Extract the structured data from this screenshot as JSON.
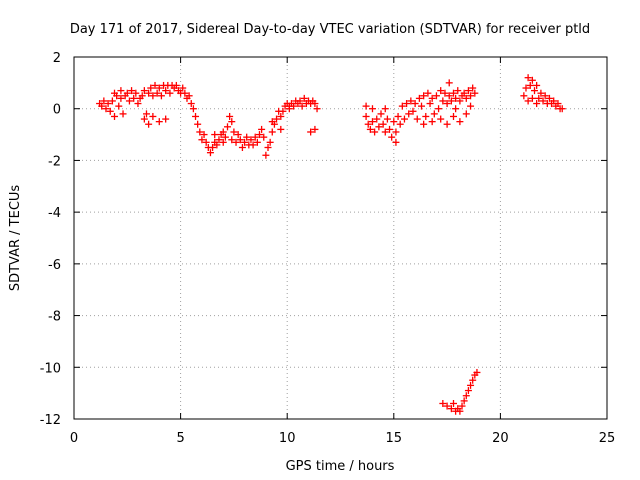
{
  "chart_data": {
    "type": "scatter",
    "title": "Day 171 of 2017, Sidereal Day-to-day VTEC variation (SDTVAR) for receiver ptld",
    "xlabel": "GPS time / hours",
    "ylabel": "SDTVAR / TECUs",
    "xlim": [
      0,
      25
    ],
    "ylim": [
      -12,
      2
    ],
    "xticks": [
      0,
      5,
      10,
      15,
      20,
      25
    ],
    "yticks": [
      -12,
      -10,
      -8,
      -6,
      -4,
      -2,
      0,
      2
    ],
    "grid": true,
    "marker": "plus",
    "color": "#ff0000",
    "series": [
      {
        "values": [
          [
            1.2,
            0.2
          ],
          [
            1.3,
            0.1
          ],
          [
            1.4,
            0.3
          ],
          [
            1.5,
            0.0
          ],
          [
            1.6,
            0.2
          ],
          [
            1.7,
            -0.1
          ],
          [
            1.8,
            0.3
          ],
          [
            1.9,
            -0.3
          ],
          [
            2.0,
            0.5
          ],
          [
            2.1,
            0.1
          ],
          [
            2.2,
            0.4
          ],
          [
            2.3,
            -0.2
          ],
          [
            2.4,
            0.5
          ],
          [
            2.5,
            0.6
          ],
          [
            2.6,
            0.3
          ],
          [
            2.7,
            0.7
          ],
          [
            2.8,
            0.4
          ],
          [
            2.9,
            0.6
          ],
          [
            3.0,
            0.2
          ],
          [
            3.1,
            0.4
          ],
          [
            3.2,
            0.5
          ],
          [
            3.3,
            0.7
          ],
          [
            3.4,
            -0.2
          ],
          [
            3.5,
            0.6
          ],
          [
            3.6,
            0.8
          ],
          [
            3.7,
            0.5
          ],
          [
            3.8,
            0.9
          ],
          [
            3.9,
            0.6
          ],
          [
            4.0,
            0.8
          ],
          [
            4.1,
            0.5
          ],
          [
            4.2,
            0.9
          ],
          [
            4.3,
            0.7
          ],
          [
            4.4,
            0.9
          ],
          [
            4.5,
            0.6
          ],
          [
            4.6,
            0.9
          ],
          [
            4.7,
            0.8
          ],
          [
            4.8,
            0.9
          ],
          [
            4.9,
            0.7
          ],
          [
            5.0,
            0.6
          ],
          [
            5.1,
            0.8
          ],
          [
            5.2,
            0.6
          ],
          [
            5.3,
            0.4
          ],
          [
            5.4,
            0.5
          ],
          [
            5.5,
            0.2
          ],
          [
            5.6,
            0.0
          ],
          [
            5.7,
            -0.3
          ],
          [
            5.8,
            -0.6
          ],
          [
            5.9,
            -0.9
          ],
          [
            6.0,
            -1.2
          ],
          [
            6.1,
            -1.0
          ],
          [
            6.2,
            -1.3
          ],
          [
            6.3,
            -1.5
          ],
          [
            6.4,
            -1.7
          ],
          [
            6.5,
            -1.5
          ],
          [
            6.6,
            -1.3
          ],
          [
            6.7,
            -1.4
          ],
          [
            6.8,
            -1.2
          ],
          [
            6.9,
            -1.0
          ],
          [
            7.0,
            -0.9
          ],
          [
            7.1,
            -1.1
          ],
          [
            7.2,
            -0.7
          ],
          [
            7.3,
            -0.3
          ],
          [
            7.4,
            -0.5
          ],
          [
            7.5,
            -0.9
          ],
          [
            7.6,
            -1.3
          ],
          [
            7.7,
            -1.0
          ],
          [
            7.8,
            -1.2
          ],
          [
            7.9,
            -1.5
          ],
          [
            8.0,
            -1.3
          ],
          [
            8.1,
            -1.1
          ],
          [
            8.2,
            -1.4
          ],
          [
            8.3,
            -1.2
          ],
          [
            8.4,
            -1.4
          ],
          [
            8.5,
            -1.1
          ],
          [
            8.6,
            -1.3
          ],
          [
            8.7,
            -1.0
          ],
          [
            8.8,
            -0.8
          ],
          [
            8.9,
            -1.1
          ],
          [
            9.0,
            -1.8
          ],
          [
            9.1,
            -1.5
          ],
          [
            9.2,
            -1.3
          ],
          [
            9.3,
            -0.9
          ],
          [
            9.4,
            -0.6
          ],
          [
            9.5,
            -0.4
          ],
          [
            9.6,
            -0.1
          ],
          [
            9.7,
            -0.3
          ],
          [
            9.8,
            -0.1
          ],
          [
            9.9,
            0.1
          ],
          [
            10.0,
            0.2
          ],
          [
            10.1,
            0.1
          ],
          [
            10.2,
            0.2
          ],
          [
            10.3,
            0.1
          ],
          [
            10.4,
            0.3
          ],
          [
            10.5,
            0.2
          ],
          [
            10.6,
            0.3
          ],
          [
            10.7,
            0.1
          ],
          [
            10.8,
            0.4
          ],
          [
            10.9,
            0.2
          ],
          [
            11.0,
            0.3
          ],
          [
            11.1,
            0.2
          ],
          [
            11.2,
            0.3
          ],
          [
            11.3,
            0.2
          ],
          [
            11.4,
            0.0
          ],
          [
            3.3,
            -0.4
          ],
          [
            3.5,
            -0.6
          ],
          [
            3.7,
            -0.3
          ],
          [
            4.0,
            -0.5
          ],
          [
            4.3,
            -0.4
          ],
          [
            6.6,
            -1.0
          ],
          [
            7.0,
            -1.3
          ],
          [
            7.4,
            -1.2
          ],
          [
            9.3,
            -0.5
          ],
          [
            9.7,
            -0.8
          ],
          [
            10.1,
            0.0
          ],
          [
            11.1,
            -0.9
          ],
          [
            11.3,
            -0.8
          ],
          [
            2.2,
            0.7
          ],
          [
            1.9,
            0.6
          ]
        ]
      },
      {
        "values": [
          [
            13.7,
            -0.3
          ],
          [
            13.8,
            -0.6
          ],
          [
            13.9,
            -0.8
          ],
          [
            14.0,
            -0.5
          ],
          [
            14.1,
            -0.9
          ],
          [
            14.2,
            -0.4
          ],
          [
            14.3,
            -0.7
          ],
          [
            14.4,
            -0.2
          ],
          [
            14.5,
            -0.6
          ],
          [
            14.6,
            0.0
          ],
          [
            14.7,
            -0.4
          ],
          [
            14.8,
            -0.8
          ],
          [
            14.9,
            -1.1
          ],
          [
            15.0,
            -0.5
          ],
          [
            15.1,
            -1.3
          ],
          [
            15.2,
            -0.3
          ],
          [
            15.3,
            -0.6
          ],
          [
            15.4,
            0.1
          ],
          [
            15.5,
            -0.4
          ],
          [
            15.6,
            0.2
          ],
          [
            15.7,
            -0.2
          ],
          [
            15.8,
            0.3
          ],
          [
            15.9,
            -0.1
          ],
          [
            16.0,
            0.2
          ],
          [
            16.1,
            -0.4
          ],
          [
            16.2,
            0.4
          ],
          [
            16.3,
            0.1
          ],
          [
            16.4,
            0.5
          ],
          [
            16.5,
            -0.3
          ],
          [
            16.6,
            0.6
          ],
          [
            16.7,
            0.2
          ],
          [
            16.8,
            0.4
          ],
          [
            16.9,
            -0.2
          ],
          [
            17.0,
            0.5
          ],
          [
            17.1,
            0.0
          ],
          [
            17.2,
            0.7
          ],
          [
            17.3,
            0.3
          ],
          [
            17.4,
            0.6
          ],
          [
            17.5,
            0.2
          ],
          [
            17.6,
            0.5
          ],
          [
            17.7,
            0.3
          ],
          [
            17.8,
            0.6
          ],
          [
            17.9,
            0.4
          ],
          [
            18.0,
            0.7
          ],
          [
            18.1,
            0.3
          ],
          [
            18.2,
            0.5
          ],
          [
            18.3,
            0.6
          ],
          [
            18.4,
            0.4
          ],
          [
            18.5,
            0.7
          ],
          [
            18.6,
            0.5
          ],
          [
            18.7,
            0.8
          ],
          [
            18.8,
            0.6
          ],
          [
            17.2,
            -0.4
          ],
          [
            17.5,
            -0.6
          ],
          [
            17.8,
            -0.3
          ],
          [
            18.1,
            -0.5
          ],
          [
            18.4,
            -0.2
          ],
          [
            18.6,
            0.1
          ],
          [
            16.4,
            -0.6
          ],
          [
            16.8,
            -0.5
          ],
          [
            15.1,
            -0.9
          ],
          [
            14.6,
            -0.9
          ],
          [
            13.7,
            0.1
          ],
          [
            14.0,
            0.0
          ],
          [
            17.6,
            1.0
          ],
          [
            17.9,
            0.0
          ],
          [
            17.3,
            -11.4
          ],
          [
            17.5,
            -11.5
          ],
          [
            17.7,
            -11.6
          ],
          [
            17.8,
            -11.4
          ],
          [
            17.9,
            -11.7
          ],
          [
            18.0,
            -11.6
          ],
          [
            18.1,
            -11.7
          ],
          [
            18.2,
            -11.5
          ],
          [
            18.3,
            -11.3
          ],
          [
            18.4,
            -11.1
          ],
          [
            18.5,
            -10.9
          ],
          [
            18.6,
            -10.7
          ],
          [
            18.7,
            -10.5
          ],
          [
            18.8,
            -10.3
          ],
          [
            18.9,
            -10.2
          ]
        ]
      },
      {
        "values": [
          [
            21.1,
            0.5
          ],
          [
            21.2,
            0.8
          ],
          [
            21.3,
            1.2
          ],
          [
            21.4,
            0.9
          ],
          [
            21.5,
            1.1
          ],
          [
            21.6,
            0.7
          ],
          [
            21.7,
            0.9
          ],
          [
            21.8,
            0.4
          ],
          [
            21.9,
            0.6
          ],
          [
            22.0,
            0.3
          ],
          [
            22.1,
            0.5
          ],
          [
            22.2,
            0.2
          ],
          [
            22.3,
            0.4
          ],
          [
            22.4,
            0.2
          ],
          [
            22.5,
            0.3
          ],
          [
            22.6,
            0.1
          ],
          [
            22.7,
            0.2
          ],
          [
            22.8,
            0.0
          ],
          [
            22.9,
            0.0
          ],
          [
            21.3,
            0.3
          ],
          [
            21.5,
            0.4
          ],
          [
            21.7,
            0.2
          ]
        ]
      }
    ]
  }
}
